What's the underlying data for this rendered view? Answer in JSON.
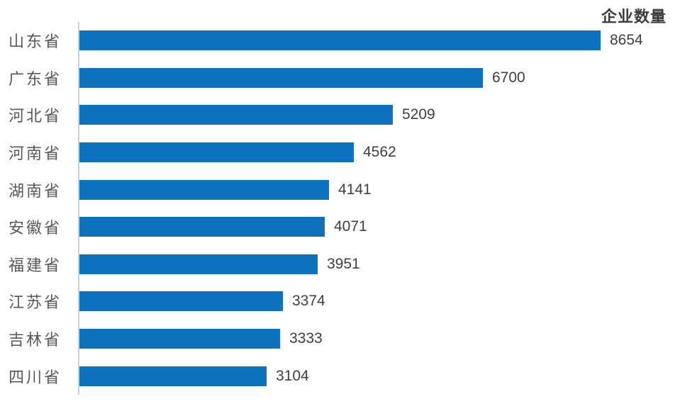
{
  "chart_data": {
    "type": "bar",
    "orientation": "horizontal",
    "title": "企业数量",
    "categories": [
      "山东省",
      "广东省",
      "河北省",
      "河南省",
      "湖南省",
      "安徽省",
      "福建省",
      "江苏省",
      "吉林省",
      "四川省"
    ],
    "values": [
      8654,
      6700,
      5209,
      4562,
      4141,
      4071,
      3951,
      3374,
      3333,
      3104
    ],
    "value_labels_shown": true,
    "legend": "none",
    "grid": "off",
    "x_axis_ticks": "none",
    "bar_color": "#0f72bc",
    "axis_line_color": "#d2d0d0",
    "title_color": "#3b3b3b",
    "category_label_color": "#575757",
    "value_label_color": "#404040",
    "background_color": "#ffffff"
  }
}
